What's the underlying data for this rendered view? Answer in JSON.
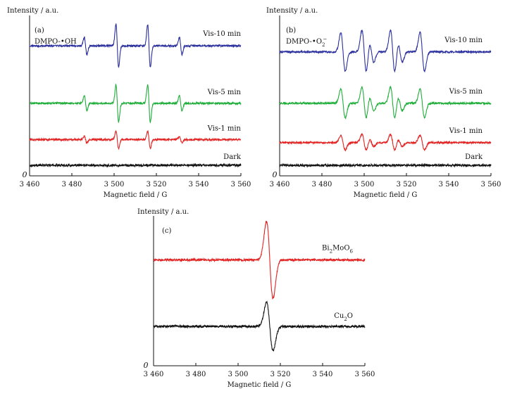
{
  "chart_data": [
    {
      "id": "a",
      "type": "line",
      "panel_label": "(a)",
      "ylabel": "Intensity / a.u.",
      "xlabel": "Magnetic field / G",
      "origin_label": "0",
      "xlim": [
        3460,
        3560
      ],
      "x_ticks": [
        "3 460",
        "3 480",
        "3 500",
        "3 520",
        "3 540",
        "3 560"
      ],
      "x_tick_values": [
        3460,
        3480,
        3500,
        3520,
        3540,
        3560
      ],
      "species_label": "DMPO-•OH",
      "species_parts": [],
      "lines": [
        3486.5,
        3501.5,
        3516.5,
        3531.5
      ],
      "line_heights": [
        0.4,
        1.0,
        1.0,
        0.4
      ],
      "line_width": 0.9,
      "series": [
        {
          "name": "Dark",
          "color": "#111111",
          "baseline": 0.0,
          "amplitude": 0.0,
          "noise": 0.012
        },
        {
          "name": "Vis-1 min",
          "color": "#e32222",
          "baseline": 0.17,
          "amplitude": 0.06,
          "noise": 0.01
        },
        {
          "name": "Vis-5 min",
          "color": "#1fae3a",
          "baseline": 0.41,
          "amplitude": 0.13,
          "noise": 0.01
        },
        {
          "name": "Vis-10 min",
          "color": "#2a2f9e",
          "baseline": 0.79,
          "amplitude": 0.15,
          "noise": 0.01
        }
      ]
    },
    {
      "id": "b",
      "type": "line",
      "panel_label": "(b)",
      "ylabel": "Intensity / a.u.",
      "xlabel": "Magnetic field / G",
      "origin_label": "0",
      "xlim": [
        3460,
        3560
      ],
      "x_ticks": [
        "3 460",
        "3 480",
        "3 500",
        "3 520",
        "3 540",
        "3 560"
      ],
      "x_tick_values": [
        3460,
        3480,
        3500,
        3520,
        3540,
        3560
      ],
      "species_label": "",
      "species_parts": [
        "DMPO-•O",
        "2",
        "−"
      ],
      "lines": [
        3490,
        3500,
        3503.5,
        3513.5,
        3517,
        3527.5
      ],
      "line_heights": [
        0.85,
        0.95,
        0.45,
        0.95,
        0.45,
        0.85
      ],
      "line_width": 1.5,
      "series": [
        {
          "name": "Dark",
          "color": "#111111",
          "baseline": 0.0,
          "amplitude": 0.0,
          "noise": 0.012
        },
        {
          "name": "Vis-1 min",
          "color": "#e32222",
          "baseline": 0.15,
          "amplitude": 0.06,
          "noise": 0.01
        },
        {
          "name": "Vis-5 min",
          "color": "#1fae3a",
          "baseline": 0.41,
          "amplitude": 0.12,
          "noise": 0.01
        },
        {
          "name": "Vis-10 min",
          "color": "#2a2f9e",
          "baseline": 0.75,
          "amplitude": 0.16,
          "noise": 0.01
        }
      ]
    },
    {
      "id": "c",
      "type": "line",
      "panel_label": "(c)",
      "ylabel": "Intensity / a.u.",
      "xlabel": "Magnetic field / G",
      "origin_label": "0",
      "xlim": [
        3460,
        3560
      ],
      "x_ticks": [
        "3 460",
        "3 480",
        "3 500",
        "3 520",
        "3 540",
        "3 560"
      ],
      "x_tick_values": [
        3460,
        3480,
        3500,
        3520,
        3540,
        3560
      ],
      "species_label": "",
      "species_parts": [],
      "lines": [
        3515
      ],
      "line_heights": [
        1.0
      ],
      "line_width": 2.2,
      "series": [
        {
          "name": "",
          "name_parts": [
            "Cu",
            "2",
            "O"
          ],
          "color": "#111111",
          "baseline": 0.26,
          "amplitude": 0.17,
          "noise": 0.012
        },
        {
          "name": "",
          "name_parts": [
            "Bi",
            "2",
            "MoO",
            "6",
            ""
          ],
          "color": "#e32222",
          "baseline": 0.7,
          "amplitude": 0.27,
          "noise": 0.012
        }
      ]
    }
  ]
}
